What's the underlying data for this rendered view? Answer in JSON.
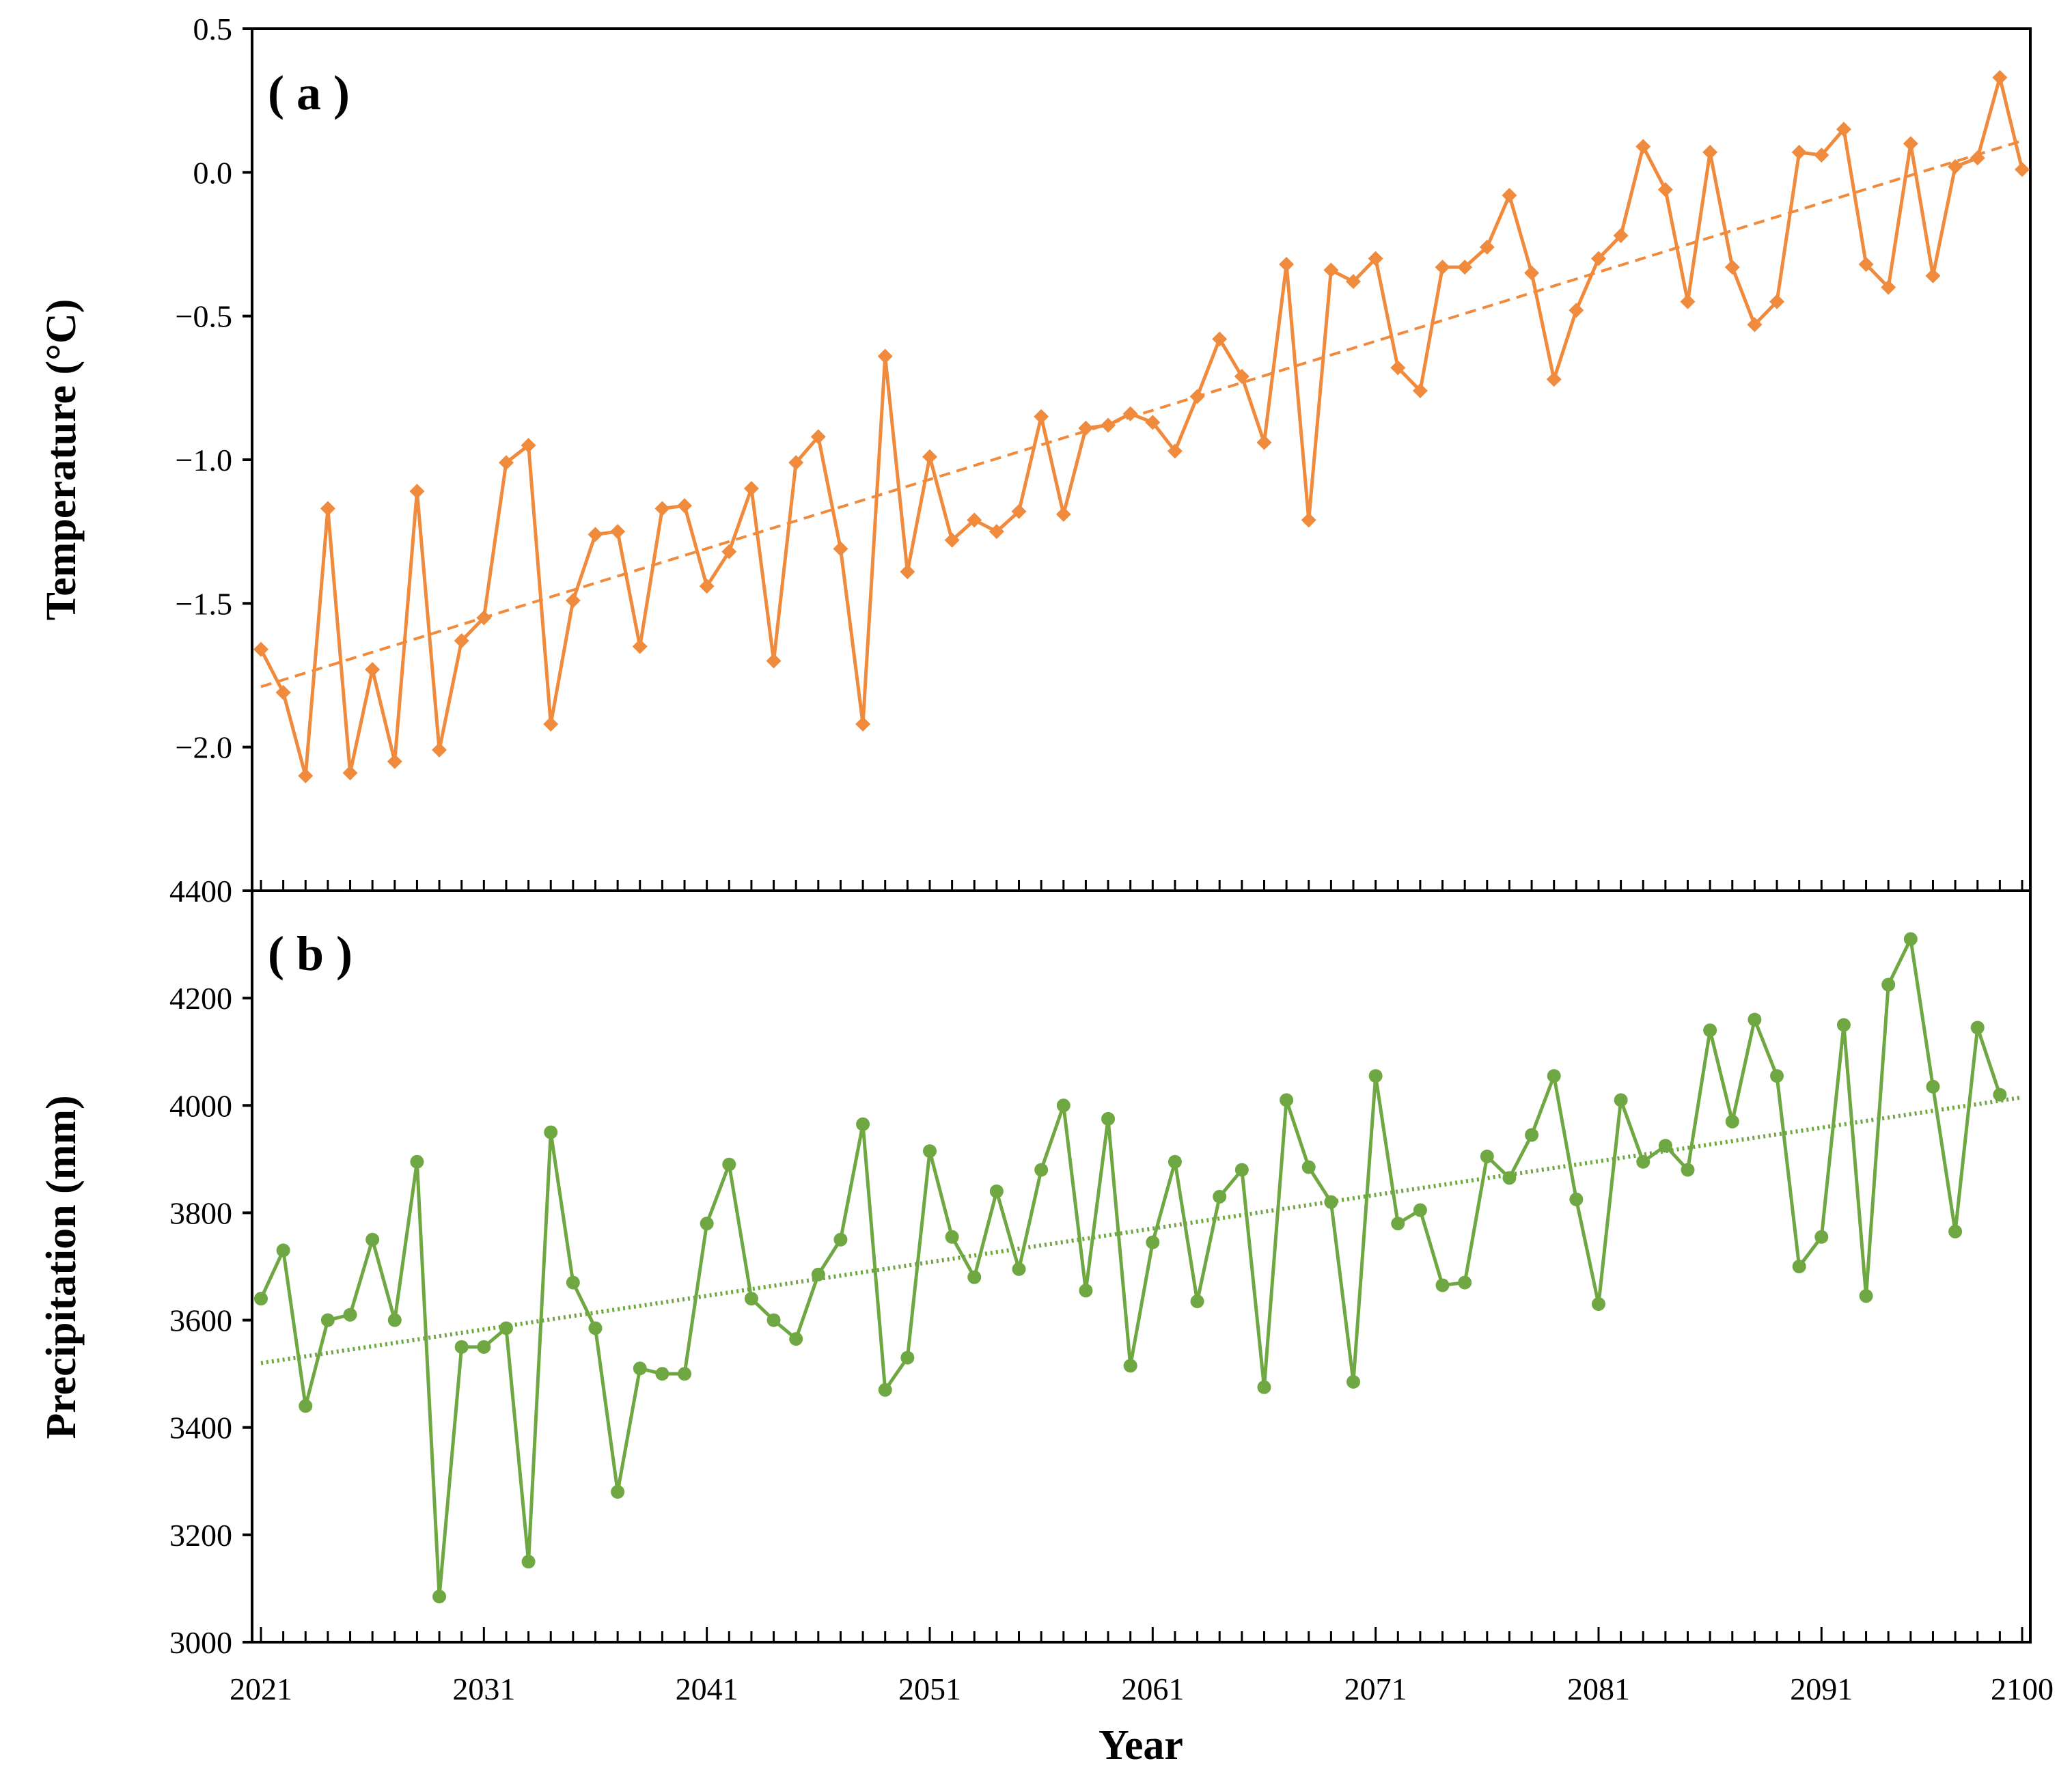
{
  "chart_data": [
    {
      "type": "line",
      "panel_label": "( a )",
      "ylabel": "Temperature (°C)",
      "xlabel": "",
      "ylim": [
        -2.5,
        0.5
      ],
      "yticks": [
        0.5,
        0.0,
        -0.5,
        -1.0,
        -1.5,
        -2.0
      ],
      "ytick_labels": [
        "0.5",
        "0.0",
        "−0.5",
        "−1.0",
        "−1.5",
        "−2.0"
      ],
      "xlim": [
        2021,
        2100
      ],
      "marker": "diamond",
      "color": "#f08a3c",
      "grid": false,
      "series": [
        {
          "name": "Temperature",
          "x_start": 2021,
          "values": [
            -1.66,
            -1.81,
            -2.1,
            -1.17,
            -2.09,
            -1.73,
            -2.05,
            -1.11,
            -2.01,
            -1.63,
            -1.55,
            -1.01,
            -0.95,
            -1.92,
            -1.49,
            -1.26,
            -1.25,
            -1.65,
            -1.17,
            -1.16,
            -1.44,
            -1.32,
            -1.1,
            -1.7,
            -1.01,
            -0.92,
            -1.31,
            -1.92,
            -0.64,
            -1.39,
            -0.99,
            -1.28,
            -1.21,
            -1.25,
            -1.18,
            -0.85,
            -1.19,
            -0.89,
            -0.88,
            -0.84,
            -0.87,
            -0.97,
            -0.78,
            -0.58,
            -0.71,
            -0.94,
            -0.32,
            -1.21,
            -0.34,
            -0.38,
            -0.3,
            -0.68,
            -0.76,
            -0.33,
            -0.33,
            -0.26,
            -0.08,
            -0.35,
            -0.72,
            -0.48,
            -0.3,
            -0.22,
            0.09,
            -0.06,
            -0.45,
            0.07,
            -0.33,
            -0.53,
            -0.45,
            0.07,
            0.06,
            0.15,
            -0.32,
            -0.4,
            0.1,
            -0.36,
            0.02,
            0.05,
            0.33,
            0.01
          ]
        }
      ],
      "trend": {
        "start": -1.79,
        "end": 0.11,
        "style": "dashed"
      }
    },
    {
      "type": "line",
      "panel_label": "( b )",
      "ylabel": "Precipitation (mm)",
      "xlabel": "Year",
      "ylim": [
        3000,
        4400
      ],
      "yticks": [
        4400,
        4200,
        4000,
        3800,
        3600,
        3400,
        3200,
        3000
      ],
      "ytick_labels": [
        "4400",
        "4200",
        "4000",
        "3800",
        "3600",
        "3400",
        "3200",
        "3000"
      ],
      "xlim": [
        2021,
        2100
      ],
      "xticks": [
        2021,
        2031,
        2041,
        2051,
        2061,
        2071,
        2081,
        2091,
        2100
      ],
      "xtick_labels": [
        "2021",
        "2031",
        "2041",
        "2051",
        "2061",
        "2071",
        "2081",
        "2091",
        "2100"
      ],
      "marker": "circle",
      "color": "#6fa843",
      "grid": false,
      "series": [
        {
          "name": "Precipitation",
          "x_start": 2021,
          "values": [
            3640,
            3730,
            3440,
            3600,
            3610,
            3750,
            3600,
            3895,
            3085,
            3550,
            3550,
            3585,
            3150,
            3950,
            3670,
            3585,
            3280,
            3510,
            3500,
            3500,
            3780,
            3890,
            3640,
            3600,
            3565,
            3685,
            3750,
            3965,
            3470,
            3530,
            3915,
            3755,
            3680,
            3840,
            3695,
            3880,
            4000,
            3655,
            3975,
            3515,
            3745,
            3895,
            3635,
            3830,
            3880,
            3475,
            4010,
            3885,
            3820,
            3485,
            4055,
            3780,
            3805,
            3665,
            3670,
            3905,
            3865,
            3945,
            4055,
            3825,
            3630,
            4010,
            3895,
            3925,
            3880,
            4140,
            3970,
            4160,
            4055,
            3700,
            3755,
            4150,
            3645,
            4225,
            4310,
            4035,
            3765,
            4145,
            4020
          ]
        }
      ],
      "trend": {
        "start": 3520,
        "end": 4015,
        "style": "dotted"
      }
    }
  ]
}
